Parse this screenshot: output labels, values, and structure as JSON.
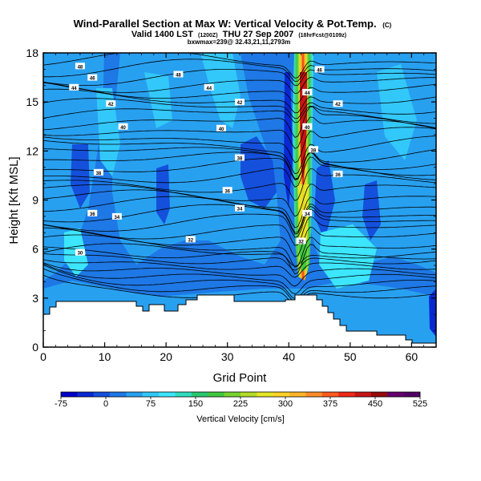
{
  "chart_data": {
    "type": "heatmap",
    "title": "Wind-Parallel Section at Max W: Vertical Velocity & Pot.Temp.",
    "title_mark": "(C)",
    "subtitle_main": "Valid 1400 LST",
    "subtitle_run": "(1200Z)",
    "subtitle_date": "THU 27 Sep 2007",
    "subtitle_fcst": "(18hrFcst@0109z)",
    "subtitle2": "bxwmax=239@ 32.43,21,11,2793m",
    "xlabel": "Grid Point",
    "ylabel": "Height [Kft MSL]",
    "xlim": [
      0,
      64
    ],
    "ylim": [
      0,
      18
    ],
    "x_ticks": [
      "0",
      "10",
      "20",
      "30",
      "40",
      "50",
      "60"
    ],
    "y_ticks": [
      "0",
      "3",
      "6",
      "9",
      "12",
      "15",
      "18"
    ],
    "colorbar": {
      "label": "Vertical Velocity [cm/s]",
      "ticks": [
        "-75",
        "0",
        "75",
        "150",
        "225",
        "300",
        "375",
        "450",
        "525"
      ],
      "range": [
        -75,
        525
      ],
      "colors": [
        "#0000c8",
        "#0a28d2",
        "#1450dc",
        "#1e78e6",
        "#28a0f0",
        "#32c8fa",
        "#3ce6ff",
        "#30dcc0",
        "#28c870",
        "#40c840",
        "#78d230",
        "#b4dc28",
        "#e6e628",
        "#ffd228",
        "#ffb428",
        "#ff8c28",
        "#ff5a1e",
        "#f02814",
        "#c81414",
        "#960a0a",
        "#64006e",
        "#500064"
      ]
    },
    "max_updraft": {
      "x": 42,
      "value": 525
    },
    "theta_contour_labels": [
      {
        "text": "48",
        "x": 6,
        "y": 17.2
      },
      {
        "text": "46",
        "x": 8,
        "y": 16.5
      },
      {
        "text": "44",
        "x": 5,
        "y": 15.9
      },
      {
        "text": "42",
        "x": 11,
        "y": 14.9
      },
      {
        "text": "40",
        "x": 13,
        "y": 13.5
      },
      {
        "text": "38",
        "x": 9,
        "y": 10.7
      },
      {
        "text": "36",
        "x": 8,
        "y": 8.2
      },
      {
        "text": "34",
        "x": 12,
        "y": 8.0
      },
      {
        "text": "32",
        "x": 24,
        "y": 6.6
      },
      {
        "text": "30",
        "x": 6,
        "y": 5.8
      },
      {
        "text": "48",
        "x": 22,
        "y": 16.7
      },
      {
        "text": "44",
        "x": 27,
        "y": 15.9
      },
      {
        "text": "42",
        "x": 32,
        "y": 15.0
      },
      {
        "text": "40",
        "x": 29,
        "y": 13.4
      },
      {
        "text": "38",
        "x": 32,
        "y": 11.6
      },
      {
        "text": "36",
        "x": 30,
        "y": 9.6
      },
      {
        "text": "34",
        "x": 32,
        "y": 8.5
      },
      {
        "text": "46",
        "x": 45,
        "y": 17.0
      },
      {
        "text": "44",
        "x": 43,
        "y": 15.6
      },
      {
        "text": "42",
        "x": 48,
        "y": 14.9
      },
      {
        "text": "40",
        "x": 43,
        "y": 13.5
      },
      {
        "text": "38",
        "x": 44,
        "y": 12.1
      },
      {
        "text": "36",
        "x": 48,
        "y": 10.6
      },
      {
        "text": "34",
        "x": 43,
        "y": 8.2
      },
      {
        "text": "32",
        "x": 42,
        "y": 6.5
      }
    ]
  }
}
